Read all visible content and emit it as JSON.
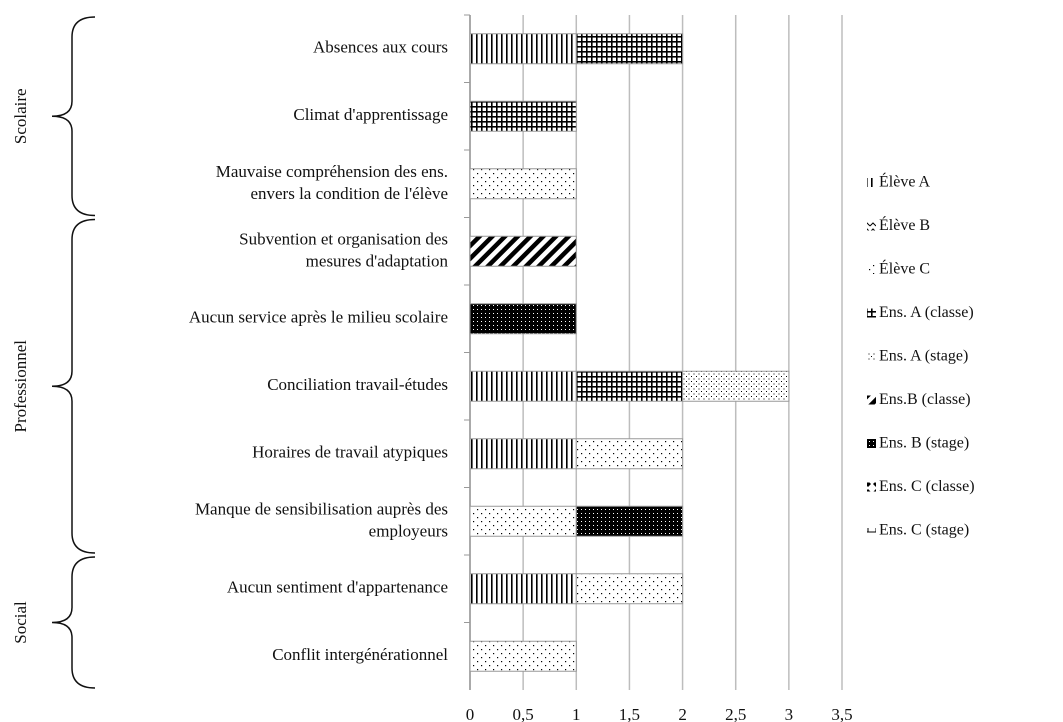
{
  "chart_data": {
    "type": "stacked-bar-horizontal",
    "categories": [
      "Absences aux cours",
      "Climat d'apprentissage",
      "Mauvaise compréhension des ens.\nenvers la condition de l'élève",
      "Subvention et organisation des\nmesures d'adaptation",
      "Aucun service après le milieu scolaire",
      "Conciliation travail-études",
      "Horaires de travail atypiques",
      "Manque de sensibilisation auprès des\nemployeurs",
      "Aucun sentiment d'appartenance",
      "Conflit intergénérationnel"
    ],
    "groups": [
      {
        "label": "Scolaire",
        "from": 0,
        "to": 2
      },
      {
        "label": "Professionnel",
        "from": 3,
        "to": 7
      },
      {
        "label": "Social",
        "from": 8,
        "to": 9
      }
    ],
    "series": [
      {
        "name": "Élève A",
        "pattern": "vertical-lines",
        "values": [
          1,
          null,
          null,
          null,
          null,
          1,
          1,
          null,
          1,
          null
        ]
      },
      {
        "name": "Élève B",
        "pattern": "zigzag",
        "values": [
          null,
          null,
          null,
          null,
          null,
          null,
          null,
          null,
          null,
          null
        ]
      },
      {
        "name": "Élève C",
        "pattern": "sparse-dots",
        "values": [
          null,
          null,
          1,
          null,
          null,
          null,
          1,
          1,
          1,
          1
        ]
      },
      {
        "name": "Ens. A (classe)",
        "pattern": "grid",
        "values": [
          1,
          1,
          null,
          null,
          null,
          1,
          null,
          null,
          null,
          null
        ]
      },
      {
        "name": "Ens. A (stage)",
        "pattern": "fine-dots",
        "values": [
          null,
          null,
          null,
          null,
          null,
          1,
          null,
          null,
          null,
          null
        ]
      },
      {
        "name": "Ens.B (classe)",
        "pattern": "diagonal",
        "values": [
          null,
          null,
          null,
          1,
          null,
          null,
          null,
          null,
          null,
          null
        ]
      },
      {
        "name": "Ens. B (stage)",
        "pattern": "dense-dots",
        "values": [
          null,
          null,
          null,
          null,
          1,
          null,
          null,
          1,
          null,
          null
        ]
      },
      {
        "name": "Ens. C (classe)",
        "pattern": "diamonds",
        "values": [
          null,
          null,
          null,
          null,
          null,
          null,
          null,
          null,
          null,
          null
        ]
      },
      {
        "name": "Ens. C (stage)",
        "pattern": "brick",
        "values": [
          null,
          null,
          null,
          null,
          null,
          null,
          null,
          null,
          null,
          null
        ]
      }
    ],
    "xlim": [
      0,
      3.5
    ],
    "xticks": [
      0,
      {
        "value": 0.5,
        "label": "0,5"
      },
      1,
      {
        "value": 1.5,
        "label": "1,5"
      },
      2,
      {
        "value": 2.5,
        "label": "2,5"
      },
      3,
      {
        "value": 3.5,
        "label": "3,5"
      }
    ],
    "grid": true,
    "legend": "right"
  }
}
